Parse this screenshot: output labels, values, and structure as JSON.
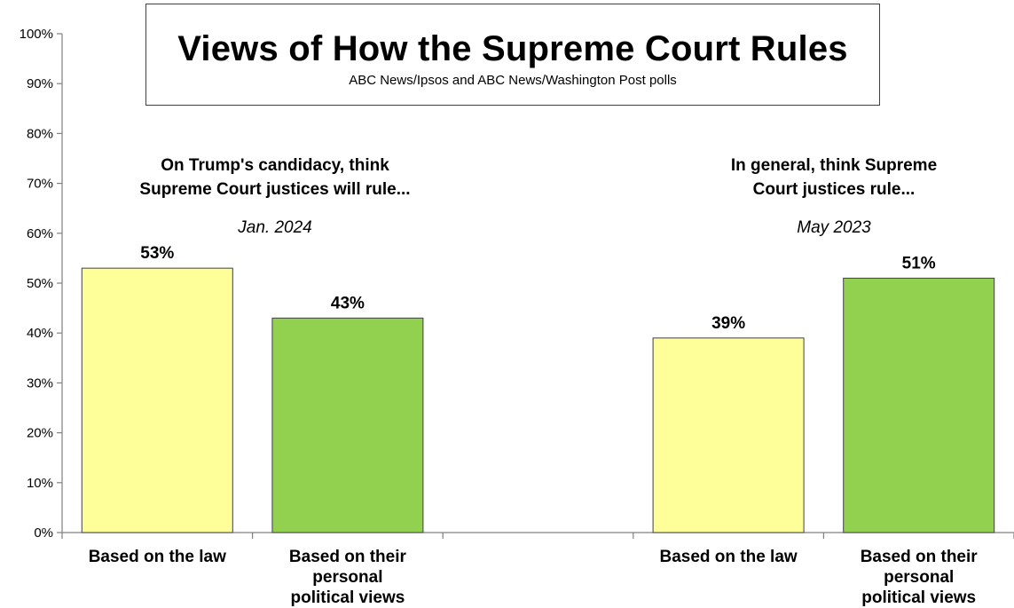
{
  "title": "Views of How the Supreme Court Rules",
  "subtitle": "ABC News/Ipsos and ABC News/Washington Post polls",
  "groups": [
    {
      "heading": "On Trump's candidacy, think\nSupreme Court justices will rule...",
      "date": "Jan. 2024"
    },
    {
      "heading": "In general, think Supreme\nCourt justices rule...",
      "date": "May 2023"
    }
  ],
  "colors": {
    "law": "#ffff99",
    "political": "#92d050",
    "axis": "#808080",
    "bar_border": "#404040"
  },
  "chart_data": {
    "type": "bar",
    "ylim": [
      0,
      100
    ],
    "y_ticks": [
      "0%",
      "10%",
      "20%",
      "30%",
      "40%",
      "50%",
      "60%",
      "70%",
      "80%",
      "90%",
      "100%"
    ],
    "grid": false,
    "bars": [
      {
        "category": "Based on the law",
        "value": 53,
        "label": "53%",
        "color": "#ffff99"
      },
      {
        "category": "Based on their personal political views",
        "value": 43,
        "label": "43%",
        "color": "#92d050"
      },
      {
        "category": "",
        "value": null,
        "label": "",
        "color": ""
      },
      {
        "category": "Based on the law",
        "value": 39,
        "label": "39%",
        "color": "#ffff99"
      },
      {
        "category": "Based on their personal political views",
        "value": 51,
        "label": "51%",
        "color": "#92d050"
      }
    ]
  }
}
